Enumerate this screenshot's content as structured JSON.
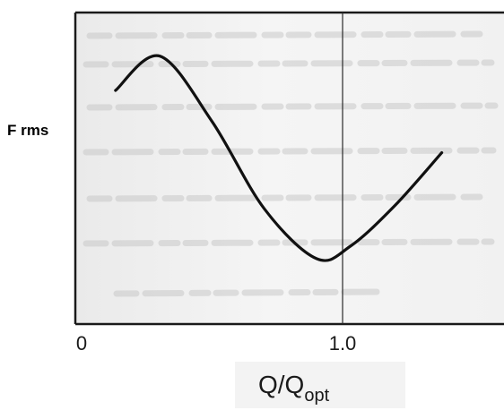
{
  "chart_data": {
    "type": "line",
    "title": "",
    "ylabel": "F rms",
    "xlabel": "Q/Q",
    "xlabel_subscript": "opt",
    "x_ticks": [
      "0",
      "1.0"
    ],
    "xlim": [
      0,
      1.45
    ],
    "ylim": [
      0,
      1
    ],
    "grid": false,
    "y_ticks_shown": false,
    "reference_lines": [
      {
        "axis": "x",
        "value": 1.0
      }
    ],
    "series": [
      {
        "x": [
          0.13,
          0.3,
          0.5,
          0.7,
          0.9,
          1.03,
          1.2,
          1.38
        ],
        "y": [
          0.75,
          0.86,
          0.65,
          0.37,
          0.21,
          0.25,
          0.38,
          0.55
        ]
      }
    ],
    "colors": {
      "line": "#111111",
      "frame": "#1a1a1a",
      "paper": "#f2f2f2",
      "background": "#ffffff"
    }
  }
}
